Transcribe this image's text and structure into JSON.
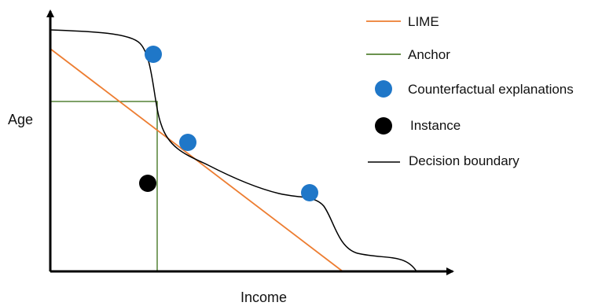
{
  "axes": {
    "x_label": "Income",
    "y_label": "Age"
  },
  "legend": [
    {
      "key": "lime",
      "label": "LIME",
      "marker": "line",
      "color": "#ED7D31"
    },
    {
      "key": "anchor",
      "label": "Anchor",
      "marker": "line",
      "color": "#548235"
    },
    {
      "key": "counterfactual",
      "label": "Counterfactual explanations",
      "marker": "dot",
      "color": "#1F77C8"
    },
    {
      "key": "instance",
      "label": "Instance",
      "marker": "dot",
      "color": "#000000"
    },
    {
      "key": "boundary",
      "label": "Decision boundary",
      "marker": "line",
      "color": "#000000"
    }
  ],
  "colors": {
    "axis": "#000000",
    "lime": "#ED7D31",
    "anchor": "#548235",
    "counterfactual": "#1F77C8",
    "instance": "#000000",
    "boundary": "#000000"
  }
}
